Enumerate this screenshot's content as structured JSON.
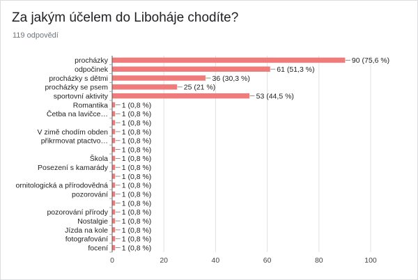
{
  "header": {
    "title": "Za jakým účelem do Liboháje chodíte?",
    "responses": "119 odpovědí"
  },
  "chart_data": {
    "type": "bar",
    "orientation": "horizontal",
    "total": 119,
    "bar_color": "#f07b7b",
    "categories": [
      {
        "label": "procházky",
        "value": 90,
        "display": "90 (75,6 %)"
      },
      {
        "label": "odpočinek",
        "value": 61,
        "display": "61 (51,3 %)"
      },
      {
        "label": "procházky s dětmi",
        "value": 36,
        "display": "36 (30,3 %)"
      },
      {
        "label": "procházky se psem",
        "value": 25,
        "display": "25 (21 %)"
      },
      {
        "label": "sportovní aktivity",
        "value": 53,
        "display": "53 (44,5 %)"
      },
      {
        "label": "Romantika",
        "value": 1,
        "display": "1 (0,8 %)"
      },
      {
        "label": "Četba na lavičce…",
        "value": 1,
        "display": "1 (0,8 %)"
      },
      {
        "label": "",
        "value": 1,
        "display": "1 (0,8 %)"
      },
      {
        "label": "V zimě chodím obden",
        "value": 1,
        "display": "1 (0,8 %)"
      },
      {
        "label": "přikrmovat ptactvo…",
        "value": 1,
        "display": "1 (0,8 %)"
      },
      {
        "label": "",
        "value": 1,
        "display": "1 (0,8 %)"
      },
      {
        "label": "Škola",
        "value": 1,
        "display": "1 (0,8 %)"
      },
      {
        "label": "Posezení s kamarády",
        "value": 1,
        "display": "1 (0,8 %)"
      },
      {
        "label": "",
        "value": 1,
        "display": "1 (0,8 %)"
      },
      {
        "label": "ornitologická a přírodovědná",
        "value": 1,
        "display": "1 (0,8 %)"
      },
      {
        "label": "pozorování",
        "value": 1,
        "display": "1 (0,8 %)"
      },
      {
        "label": "",
        "value": 1,
        "display": "1 (0,8 %)"
      },
      {
        "label": "pozorování přírody",
        "value": 1,
        "display": "1 (0,8 %)"
      },
      {
        "label": "Nostalgie",
        "value": 1,
        "display": "1 (0,8 %)"
      },
      {
        "label": "Jízda na kole",
        "value": 1,
        "display": "1 (0,8 %)"
      },
      {
        "label": "fotografování",
        "value": 1,
        "display": "1 (0,8 %)"
      },
      {
        "label": "focení",
        "value": 1,
        "display": "1 (0,8 %)"
      }
    ],
    "x_ticks": [
      0,
      20,
      40,
      60,
      80,
      100
    ],
    "xlim": [
      0,
      100
    ],
    "grid": true,
    "legend": "none"
  }
}
